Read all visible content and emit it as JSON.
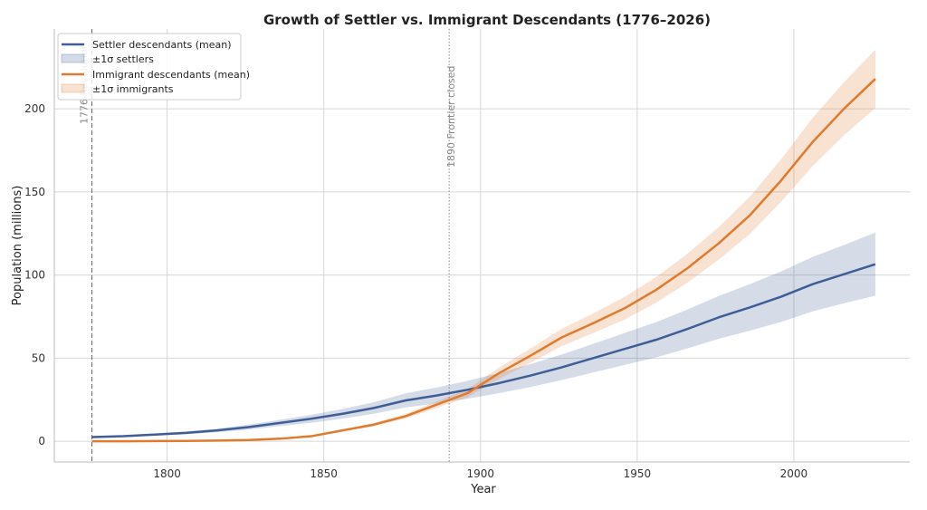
{
  "chart_data": {
    "type": "line",
    "title": "Growth of Settler vs. Immigrant Descendants (1776–2026)",
    "xlabel": "Year",
    "ylabel": "Population (millions)",
    "xlim": [
      1764,
      2037
    ],
    "ylim": [
      -12.5,
      248
    ],
    "xticks": [
      1800,
      1850,
      1900,
      1950,
      2000
    ],
    "yticks": [
      0,
      50,
      100,
      150,
      200
    ],
    "grid": true,
    "legend_placement": "top-left",
    "x": [
      1776,
      1786,
      1796,
      1806,
      1816,
      1826,
      1836,
      1846,
      1856,
      1866,
      1876,
      1886,
      1896,
      1906,
      1916,
      1926,
      1936,
      1946,
      1956,
      1966,
      1976,
      1986,
      1996,
      2006,
      2016,
      2026
    ],
    "series": [
      {
        "name": "Settler descendants (mean)",
        "band_name": "±1σ settlers",
        "color": "#3f5e96",
        "band_color": "#3f5e96",
        "values": [
          2.5,
          3,
          4,
          5,
          6.5,
          8.5,
          11,
          13.5,
          16.5,
          20,
          24.5,
          27.5,
          31,
          35,
          39.5,
          44.5,
          50,
          55.5,
          61,
          67.5,
          74.5,
          80.5,
          87,
          94.5,
          100.5,
          106.5
        ],
        "std": [
          0.4,
          0.5,
          0.7,
          0.9,
          1.1,
          1.5,
          1.9,
          2.4,
          2.9,
          3.5,
          4.2,
          4.8,
          5.4,
          6.1,
          6.9,
          7.7,
          8.6,
          9.6,
          10.6,
          11.7,
          12.9,
          14,
          15.2,
          16.4,
          17.5,
          19
        ]
      },
      {
        "name": "Immigrant descendants (mean)",
        "band_name": "±1σ immigrants",
        "color": "#e07b2e",
        "band_color": "#e07b2e",
        "values": [
          0,
          0,
          0.1,
          0.2,
          0.4,
          0.7,
          1.5,
          3,
          6.5,
          10,
          15,
          22,
          29,
          41,
          51.5,
          62.5,
          71,
          80,
          91,
          104,
          119,
          136,
          157,
          180,
          200,
          218
        ],
        "std": [
          0,
          0,
          0,
          0,
          0.1,
          0.1,
          0.2,
          0.3,
          0.6,
          1,
          1.4,
          2,
          2.5,
          3.4,
          4.3,
          5.2,
          6,
          6.8,
          7.7,
          8.7,
          9.8,
          11.2,
          12.8,
          14.5,
          16,
          17.5
        ]
      }
    ],
    "annotations": [
      {
        "x": 1776,
        "label": "1776 Revolution",
        "style": "dashed"
      },
      {
        "x": 1890,
        "label": "1890 Frontier closed",
        "style": "dotted"
      }
    ]
  }
}
